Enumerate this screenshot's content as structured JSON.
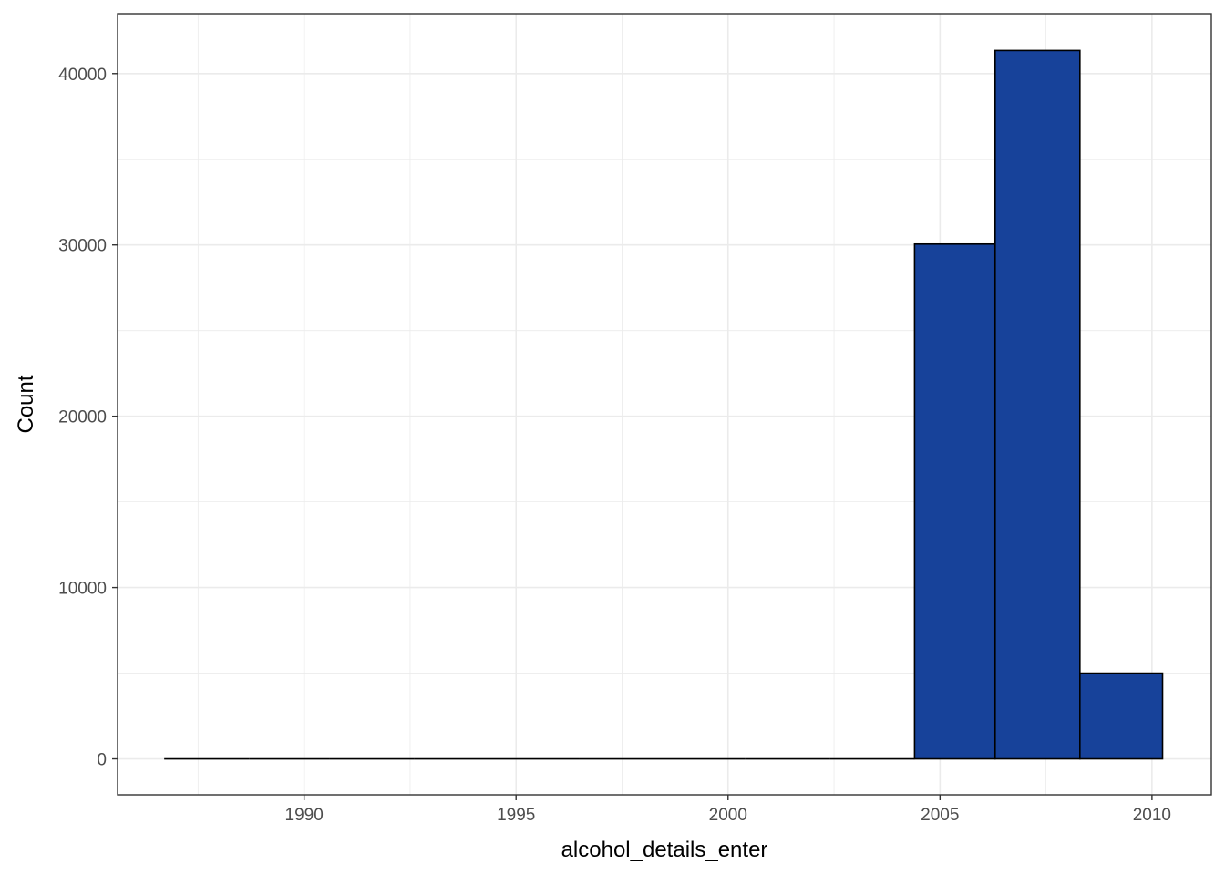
{
  "chart_data": {
    "type": "histogram",
    "title": "",
    "xlabel": "alcohol_details_enter",
    "ylabel": "Count",
    "x_ticks": [
      1990,
      1995,
      2000,
      2005,
      2010
    ],
    "y_ticks": [
      0,
      10000,
      20000,
      30000,
      40000
    ],
    "xlim": [
      1985.6,
      2011.4
    ],
    "ylim": [
      -2100,
      43500
    ],
    "bins": [
      {
        "x0": 1986.7,
        "x1": 1988.7,
        "count": 0
      },
      {
        "x0": 1988.7,
        "x1": 1990.6,
        "count": 0
      },
      {
        "x0": 1990.6,
        "x1": 1992.6,
        "count": 0
      },
      {
        "x0": 1992.6,
        "x1": 1994.6,
        "count": 0
      },
      {
        "x0": 1994.6,
        "x1": 1996.5,
        "count": 0
      },
      {
        "x0": 1996.5,
        "x1": 1998.5,
        "count": 0
      },
      {
        "x0": 1998.5,
        "x1": 2000.4,
        "count": 0
      },
      {
        "x0": 2000.4,
        "x1": 2002.4,
        "count": 0
      },
      {
        "x0": 2002.4,
        "x1": 2004.4,
        "count": 0
      },
      {
        "x0": 2004.4,
        "x1": 2006.3,
        "count": 30050
      },
      {
        "x0": 2006.3,
        "x1": 2008.3,
        "count": 41350
      },
      {
        "x0": 2008.3,
        "x1": 2010.25,
        "count": 5000
      }
    ],
    "fill_color": "#17429A",
    "edge_color": "#000000",
    "grid": true,
    "grid_color": "#EBEBEB",
    "panel_border_color": "#333333",
    "legend": "none"
  }
}
